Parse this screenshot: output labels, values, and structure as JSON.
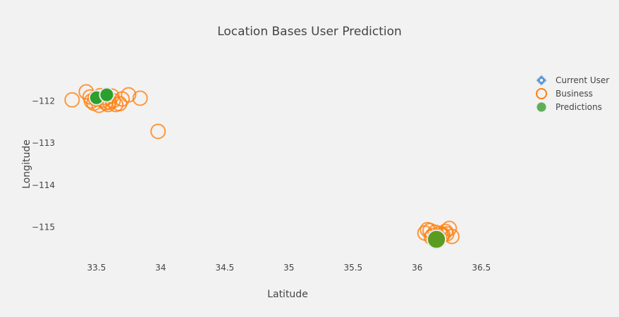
{
  "chart_data": {
    "type": "scatter",
    "title": "Location Bases User Prediction",
    "xlabel": "Latitude",
    "ylabel": "Longitude",
    "xlim": [
      33.16,
      36.82
    ],
    "ylim": [
      -115.78,
      -111.27
    ],
    "x_ticks": [
      33.5,
      34,
      34.5,
      35,
      35.5,
      36,
      36.5
    ],
    "x_tick_labels": [
      "33.5",
      "34",
      "34.5",
      "35",
      "35.5",
      "36",
      "36.5"
    ],
    "y_ticks": [
      -112,
      -113,
      -114,
      -115
    ],
    "y_tick_labels": [
      "−112",
      "−113",
      "−114",
      "−115"
    ],
    "grid": false,
    "legend_position": "top-right",
    "series": [
      {
        "name": "Current User",
        "marker": "diamond",
        "color": "#5b9bd5",
        "x": [],
        "y": []
      },
      {
        "name": "Business",
        "marker": "open-circle",
        "color": "#ff7f0e",
        "x": [
          33.31,
          33.42,
          33.45,
          33.48,
          33.5,
          33.52,
          33.55,
          33.58,
          33.6,
          33.62,
          33.65,
          33.7,
          33.75,
          33.84,
          33.98,
          33.46,
          33.53,
          33.57,
          33.63,
          33.68,
          33.49,
          33.59,
          36.06,
          36.1,
          36.12,
          36.14,
          36.16,
          36.18,
          36.2,
          36.22,
          36.25,
          36.27,
          36.08,
          36.15,
          36.23,
          36.11,
          36.19
        ],
        "y": [
          -111.97,
          -111.78,
          -111.9,
          -112.05,
          -111.95,
          -112.1,
          -111.98,
          -111.92,
          -112.02,
          -111.88,
          -112.08,
          -111.95,
          -111.85,
          -111.93,
          -112.72,
          -112.0,
          -111.87,
          -112.04,
          -111.99,
          -112.06,
          -111.93,
          -112.08,
          -115.14,
          -115.08,
          -115.2,
          -115.12,
          -115.25,
          -115.15,
          -115.18,
          -115.1,
          -115.03,
          -115.22,
          -115.06,
          -115.3,
          -115.16,
          -115.24,
          -115.2
        ]
      },
      {
        "name": "Predictions",
        "marker": "filled-circle",
        "color": "#2ca02c",
        "x": [
          33.5,
          33.58,
          36.15
        ],
        "y": [
          -111.92,
          -111.85,
          -115.29
        ]
      }
    ]
  }
}
